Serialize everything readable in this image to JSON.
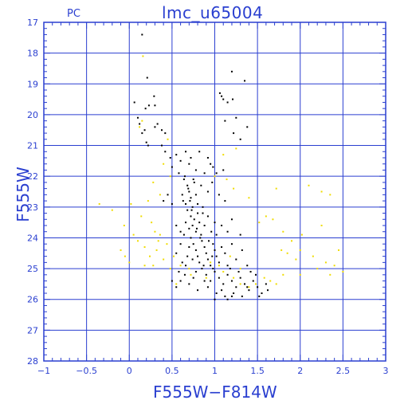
{
  "chart_data": {
    "type": "scatter",
    "title": "lmc_u65004",
    "corner_label": "PC",
    "xlabel": "F555W−F814W",
    "ylabel": "F555W",
    "xlim": [
      -1,
      3
    ],
    "ylim": [
      28,
      17
    ],
    "y_inverted": true,
    "x_ticks": [
      -1,
      -0.5,
      0,
      0.5,
      1,
      1.5,
      2,
      2.5,
      3
    ],
    "x_tick_labels": [
      "−1",
      "−0.5",
      "0",
      "0.5",
      "1",
      "1.5",
      "2",
      "2.5",
      "3"
    ],
    "y_ticks": [
      17,
      18,
      19,
      20,
      21,
      22,
      23,
      24,
      25,
      26,
      27,
      28
    ],
    "y_tick_labels": [
      "17",
      "18",
      "19",
      "20",
      "21",
      "22",
      "23",
      "24",
      "25",
      "26",
      "27",
      "28"
    ],
    "grid": true,
    "colors": {
      "axis": "#2a3fd0",
      "series_main": "#000000",
      "series_secondary": "#f0dc00"
    },
    "series": [
      {
        "color": "#000000",
        "points": [
          [
            0.15,
            17.4
          ],
          [
            0.21,
            18.8
          ],
          [
            0.06,
            19.6
          ],
          [
            0.29,
            19.4
          ],
          [
            0.23,
            19.7
          ],
          [
            0.19,
            19.8
          ],
          [
            0.3,
            19.7
          ],
          [
            1.2,
            18.6
          ],
          [
            1.35,
            18.9
          ],
          [
            1.06,
            19.3
          ],
          [
            1.1,
            19.5
          ],
          [
            1.15,
            19.6
          ],
          [
            1.08,
            19.4
          ],
          [
            1.21,
            19.5
          ],
          [
            1.25,
            20.1
          ],
          [
            0.1,
            20.1
          ],
          [
            0.12,
            20.3
          ],
          [
            0.18,
            20.5
          ],
          [
            0.15,
            20.6
          ],
          [
            0.2,
            20.9
          ],
          [
            0.22,
            21.0
          ],
          [
            0.33,
            20.3
          ],
          [
            0.38,
            20.5
          ],
          [
            0.42,
            20.6
          ],
          [
            0.3,
            20.4
          ],
          [
            1.12,
            20.2
          ],
          [
            1.22,
            20.6
          ],
          [
            1.38,
            20.4
          ],
          [
            1.3,
            20.8
          ],
          [
            0.38,
            21.0
          ],
          [
            0.42,
            21.2
          ],
          [
            0.48,
            21.4
          ],
          [
            0.55,
            21.3
          ],
          [
            0.6,
            21.5
          ],
          [
            0.66,
            21.2
          ],
          [
            0.7,
            21.6
          ],
          [
            0.78,
            21.8
          ],
          [
            0.82,
            21.2
          ],
          [
            0.92,
            21.4
          ],
          [
            0.98,
            21.7
          ],
          [
            1.02,
            21.9
          ],
          [
            1.1,
            21.8
          ],
          [
            0.5,
            21.7
          ],
          [
            0.58,
            21.9
          ],
          [
            0.65,
            22.0
          ],
          [
            0.72,
            21.4
          ],
          [
            0.88,
            21.9
          ],
          [
            0.95,
            21.6
          ],
          [
            0.64,
            22.1
          ],
          [
            0.68,
            22.3
          ],
          [
            0.7,
            22.5
          ],
          [
            0.72,
            22.7
          ],
          [
            0.66,
            22.9
          ],
          [
            0.74,
            23.0
          ],
          [
            0.76,
            22.2
          ],
          [
            0.78,
            22.6
          ],
          [
            0.8,
            22.9
          ],
          [
            0.69,
            22.4
          ],
          [
            0.71,
            22.8
          ],
          [
            0.75,
            22.1
          ],
          [
            0.62,
            22.6
          ],
          [
            0.84,
            22.3
          ],
          [
            0.92,
            22.5
          ],
          [
            0.86,
            23.0
          ],
          [
            0.63,
            22.8
          ],
          [
            0.45,
            22.6
          ],
          [
            0.5,
            22.9
          ],
          [
            0.4,
            22.8
          ],
          [
            1.05,
            22.6
          ],
          [
            1.12,
            22.8
          ],
          [
            0.97,
            22.2
          ],
          [
            0.68,
            23.1
          ],
          [
            0.72,
            23.3
          ],
          [
            0.74,
            23.6
          ],
          [
            0.78,
            23.8
          ],
          [
            0.8,
            23.2
          ],
          [
            0.82,
            23.5
          ],
          [
            0.7,
            23.7
          ],
          [
            0.76,
            23.4
          ],
          [
            0.84,
            23.9
          ],
          [
            0.66,
            23.5
          ],
          [
            0.88,
            23.6
          ],
          [
            0.92,
            23.3
          ],
          [
            0.96,
            23.8
          ],
          [
            1.0,
            23.5
          ],
          [
            0.6,
            23.8
          ],
          [
            0.55,
            23.6
          ],
          [
            0.64,
            23.9
          ],
          [
            0.73,
            23.1
          ],
          [
            0.79,
            23.7
          ],
          [
            0.86,
            23.2
          ],
          [
            1.02,
            23.9
          ],
          [
            1.08,
            23.6
          ],
          [
            1.15,
            23.8
          ],
          [
            1.2,
            23.4
          ],
          [
            1.3,
            23.9
          ],
          [
            0.72,
            24.0
          ],
          [
            0.75,
            24.2
          ],
          [
            0.78,
            24.4
          ],
          [
            0.8,
            24.6
          ],
          [
            0.82,
            24.8
          ],
          [
            0.85,
            24.1
          ],
          [
            0.88,
            24.3
          ],
          [
            0.9,
            24.5
          ],
          [
            0.92,
            24.7
          ],
          [
            0.95,
            24.9
          ],
          [
            0.98,
            24.2
          ],
          [
            1.0,
            24.4
          ],
          [
            1.02,
            24.6
          ],
          [
            1.05,
            24.8
          ],
          [
            0.7,
            24.3
          ],
          [
            0.68,
            24.6
          ],
          [
            0.66,
            24.9
          ],
          [
            0.74,
            24.7
          ],
          [
            0.87,
            24.9
          ],
          [
            0.93,
            24.1
          ],
          [
            1.08,
            24.3
          ],
          [
            1.12,
            24.5
          ],
          [
            1.15,
            24.9
          ],
          [
            1.2,
            24.2
          ],
          [
            1.25,
            24.7
          ],
          [
            1.32,
            24.4
          ],
          [
            1.38,
            24.9
          ],
          [
            0.6,
            24.2
          ],
          [
            0.55,
            24.5
          ],
          [
            0.62,
            24.8
          ],
          [
            0.83,
            24.0
          ],
          [
            0.97,
            24.6
          ],
          [
            0.85,
            25.0
          ],
          [
            0.9,
            25.2
          ],
          [
            0.95,
            25.4
          ],
          [
            1.0,
            25.1
          ],
          [
            1.05,
            25.3
          ],
          [
            1.1,
            25.5
          ],
          [
            1.15,
            25.2
          ],
          [
            1.2,
            25.4
          ],
          [
            1.25,
            25.6
          ],
          [
            1.3,
            25.3
          ],
          [
            1.35,
            25.5
          ],
          [
            1.4,
            25.7
          ],
          [
            1.45,
            25.4
          ],
          [
            1.5,
            25.6
          ],
          [
            1.55,
            25.8
          ],
          [
            0.75,
            25.3
          ],
          [
            0.7,
            25.5
          ],
          [
            0.8,
            25.7
          ],
          [
            0.92,
            25.6
          ],
          [
            1.02,
            25.8
          ],
          [
            1.12,
            25.9
          ],
          [
            1.22,
            25.8
          ],
          [
            1.32,
            25.9
          ],
          [
            0.65,
            25.2
          ],
          [
            0.6,
            25.4
          ],
          [
            0.88,
            25.4
          ],
          [
            0.98,
            25.0
          ],
          [
            1.18,
            25.0
          ],
          [
            1.28,
            25.1
          ],
          [
            1.42,
            25.1
          ],
          [
            1.6,
            25.5
          ],
          [
            1.48,
            25.2
          ],
          [
            0.78,
            25.1
          ],
          [
            1.08,
            25.7
          ],
          [
            1.38,
            25.6
          ],
          [
            1.52,
            25.9
          ],
          [
            1.62,
            25.7
          ],
          [
            0.5,
            25.4
          ],
          [
            0.55,
            25.6
          ],
          [
            0.58,
            25.1
          ],
          [
            1.0,
            26.0
          ],
          [
            1.15,
            26.0
          ],
          [
            1.2,
            25.9
          ]
        ]
      },
      {
        "color": "#f0dc00",
        "points": [
          [
            0.16,
            18.1
          ],
          [
            0.15,
            20.2
          ],
          [
            0.12,
            20.4
          ],
          [
            0.45,
            20.8
          ],
          [
            1.1,
            21.3
          ],
          [
            1.25,
            21.1
          ],
          [
            0.4,
            21.6
          ],
          [
            0.48,
            22.0
          ],
          [
            0.28,
            22.2
          ],
          [
            0.36,
            22.6
          ],
          [
            0.22,
            22.8
          ],
          [
            0.02,
            22.9
          ],
          [
            -0.35,
            22.9
          ],
          [
            -0.2,
            23.1
          ],
          [
            0.14,
            23.3
          ],
          [
            0.26,
            23.5
          ],
          [
            0.3,
            23.8
          ],
          [
            0.36,
            23.9
          ],
          [
            1.0,
            22.0
          ],
          [
            1.14,
            22.1
          ],
          [
            1.22,
            22.4
          ],
          [
            1.4,
            22.7
          ],
          [
            1.6,
            23.3
          ],
          [
            1.72,
            22.4
          ],
          [
            2.1,
            22.3
          ],
          [
            2.25,
            22.5
          ],
          [
            2.35,
            22.6
          ],
          [
            -0.06,
            23.6
          ],
          [
            0.05,
            23.9
          ],
          [
            0.1,
            24.1
          ],
          [
            0.18,
            24.3
          ],
          [
            0.32,
            24.4
          ],
          [
            0.44,
            24.2
          ],
          [
            -0.1,
            24.4
          ],
          [
            -0.05,
            24.6
          ],
          [
            0.0,
            24.8
          ],
          [
            0.28,
            24.9
          ],
          [
            0.4,
            24.7
          ],
          [
            0.48,
            25.0
          ],
          [
            0.52,
            24.6
          ],
          [
            1.52,
            23.5
          ],
          [
            1.68,
            23.4
          ],
          [
            1.8,
            23.8
          ],
          [
            1.9,
            24.1
          ],
          [
            2.02,
            23.9
          ],
          [
            2.25,
            23.6
          ],
          [
            1.85,
            24.5
          ],
          [
            2.0,
            24.4
          ],
          [
            2.15,
            24.6
          ],
          [
            2.3,
            24.8
          ],
          [
            1.78,
            24.4
          ],
          [
            1.95,
            24.7
          ],
          [
            2.45,
            24.4
          ],
          [
            2.4,
            24.9
          ],
          [
            1.8,
            25.2
          ],
          [
            2.0,
            25.2
          ],
          [
            2.2,
            25.0
          ],
          [
            2.35,
            25.2
          ],
          [
            2.5,
            25.1
          ],
          [
            1.65,
            25.4
          ],
          [
            1.72,
            25.5
          ],
          [
            1.4,
            25.6
          ],
          [
            1.3,
            25.5
          ],
          [
            1.22,
            25.3
          ],
          [
            1.1,
            25.1
          ],
          [
            1.05,
            24.9
          ],
          [
            0.95,
            24.8
          ],
          [
            0.6,
            24.9
          ],
          [
            0.72,
            25.2
          ],
          [
            0.34,
            24.1
          ],
          [
            0.24,
            24.6
          ],
          [
            0.18,
            24.9
          ],
          [
            0.55,
            25.5
          ],
          [
            0.7,
            25.0
          ],
          [
            1.18,
            24.6
          ],
          [
            1.3,
            25.0
          ],
          [
            0.9,
            25.3
          ],
          [
            1.48,
            25.5
          ],
          [
            1.58,
            25.3
          ]
        ]
      }
    ]
  }
}
